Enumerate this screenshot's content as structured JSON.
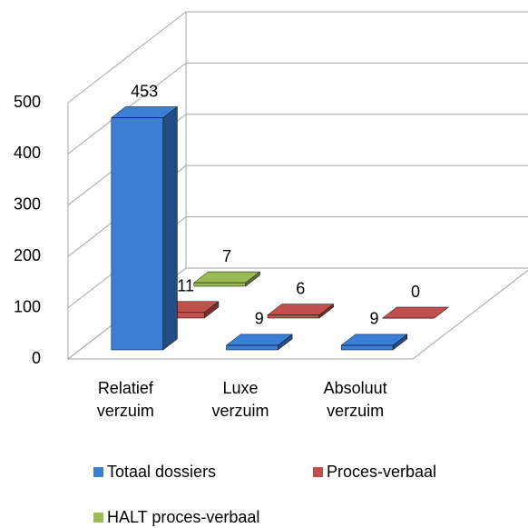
{
  "chart_data": {
    "type": "bar3d",
    "categories": [
      "Relatief verzuim",
      "Luxe verzuim",
      "Absoluut verzuim"
    ],
    "series": [
      {
        "name": "Totaal dossiers",
        "color": "#3a7fd5",
        "values": [
          453,
          9,
          9
        ]
      },
      {
        "name": "Proces-verbaal",
        "color": "#c0504d",
        "values": [
          11,
          6,
          0
        ]
      },
      {
        "name": "HALT proces-verbaal",
        "color": "#9bbb59",
        "values": [
          7,
          null,
          null
        ]
      }
    ],
    "ylim": [
      0,
      500
    ],
    "yticks": [
      0,
      100,
      200,
      300,
      400,
      500
    ],
    "grid": true
  }
}
